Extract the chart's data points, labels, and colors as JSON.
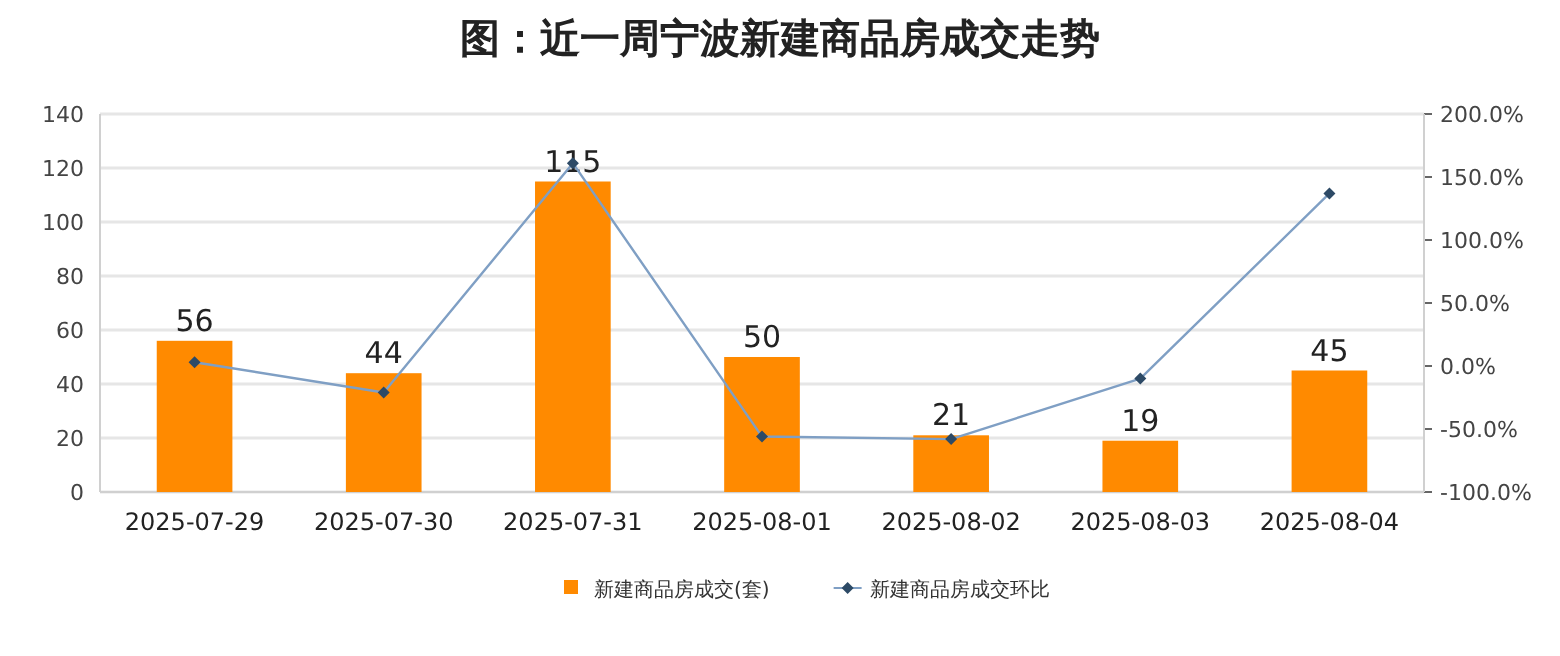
{
  "chart_data": {
    "type": "bar",
    "title": "图：近一周宁波新建商品房成交走势",
    "categories": [
      "2025-07-29",
      "2025-07-30",
      "2025-07-31",
      "2025-08-01",
      "2025-08-02",
      "2025-08-03",
      "2025-08-04"
    ],
    "series": [
      {
        "name": "新建商品房成交(套)",
        "color": "#ff8a00",
        "values": [
          56,
          44,
          115,
          50,
          21,
          19,
          45
        ],
        "value_labels": [
          "56",
          "44",
          "115",
          "50",
          "21",
          "19",
          "45"
        ]
      },
      {
        "name": "新建商品房成交环比",
        "type": "line",
        "axis": "y2",
        "color": "#7f9fc4",
        "marker": "diamond",
        "values": [
          3,
          -21,
          161,
          -56,
          -58,
          -10,
          137
        ]
      }
    ],
    "ylim": [
      0,
      140
    ],
    "yticks": [
      0,
      20,
      40,
      60,
      80,
      100,
      120,
      140
    ],
    "y2lim": [
      -100,
      200
    ],
    "y2ticks": [
      {
        "value": -100,
        "label": "-100.0%"
      },
      {
        "value": -50,
        "label": "-50.0%"
      },
      {
        "value": 0,
        "label": "0.0%"
      },
      {
        "value": 50,
        "label": "50.0%"
      },
      {
        "value": 100,
        "label": "100.0%"
      },
      {
        "value": 150,
        "label": "150.0%"
      },
      {
        "value": 200,
        "label": "200.0%"
      }
    ],
    "grid": "y",
    "legend": "bottom"
  }
}
